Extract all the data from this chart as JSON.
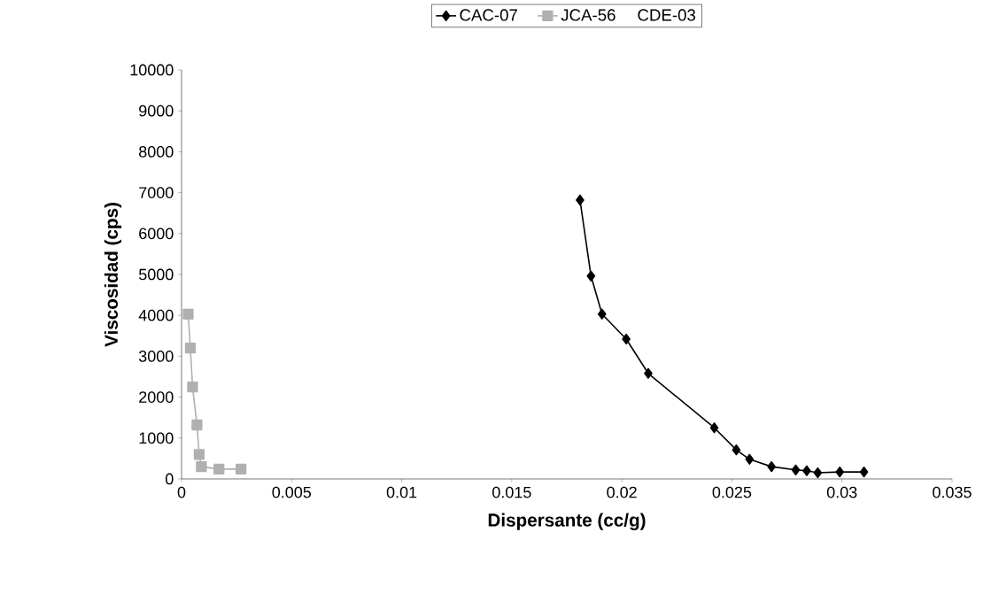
{
  "chart_data": {
    "type": "line",
    "xlabel": "Dispersante (cc/g)",
    "ylabel": "Viscosidad (cps)",
    "xlim": [
      0,
      0.035
    ],
    "ylim": [
      0,
      10000
    ],
    "xticks": [
      0,
      0.005,
      0.01,
      0.015,
      0.02,
      0.025,
      0.03,
      0.035
    ],
    "yticks": [
      0,
      1000,
      2000,
      3000,
      4000,
      5000,
      6000,
      7000,
      8000,
      9000,
      10000
    ],
    "grid": false,
    "legend": "top",
    "line_style": "solid",
    "series": [
      {
        "name": "CAC-07",
        "color": "#000000",
        "marker": "diamond",
        "x": [
          0.0181,
          0.0186,
          0.0191,
          0.0202,
          0.0212,
          0.0242,
          0.0252,
          0.0258,
          0.0268,
          0.0279,
          0.0284,
          0.0289,
          0.0299,
          0.031
        ],
        "values": [
          6820,
          4960,
          4030,
          3420,
          2580,
          1250,
          710,
          480,
          300,
          220,
          200,
          150,
          170,
          170
        ]
      },
      {
        "name": "JCA-56",
        "color": "#b0b0b0",
        "marker": "square",
        "x": [
          0.0003,
          0.0004,
          0.0005,
          0.0007,
          0.0008,
          0.0009,
          0.0017,
          0.0027
        ],
        "values": [
          4030,
          3200,
          2250,
          1320,
          600,
          300,
          240,
          240
        ]
      },
      {
        "name": "CDE-03"
      }
    ]
  }
}
